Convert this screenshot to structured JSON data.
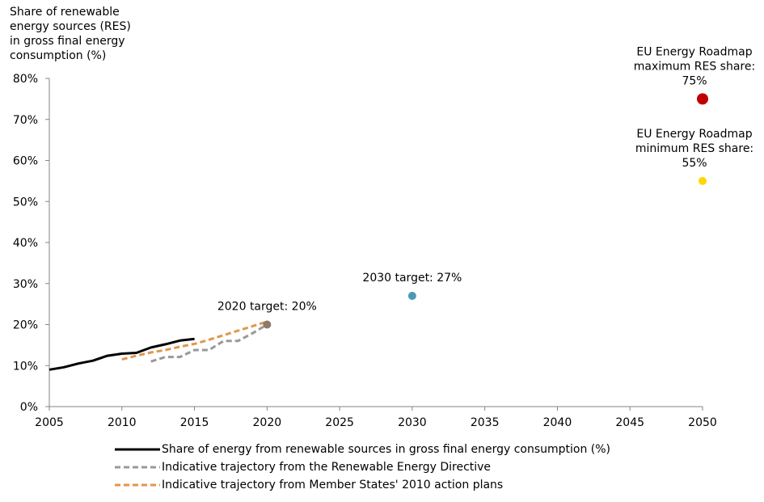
{
  "chart_data": {
    "type": "line",
    "ylabel": "Share of renewable energy sources (RES) in gross final energy consumption (%)",
    "xlim": [
      2005,
      2050
    ],
    "ylim": [
      0,
      80
    ],
    "x_ticks": [
      "2005",
      "2010",
      "2015",
      "2020",
      "2025",
      "2030",
      "2035",
      "2040",
      "2045",
      "2050"
    ],
    "y_ticks": [
      "0%",
      "10%",
      "20%",
      "30%",
      "40%",
      "50%",
      "60%",
      "70%",
      "80%"
    ],
    "grid": false,
    "legend_position": "bottom",
    "series": [
      {
        "name": "Share of energy from renewable sources in gross final energy consumption (%)",
        "style": "solid",
        "color": "#000000",
        "x": [
          2005,
          2006,
          2007,
          2008,
          2009,
          2010,
          2011,
          2012,
          2013,
          2014,
          2015
        ],
        "y": [
          9.0,
          9.6,
          10.5,
          11.2,
          12.4,
          12.9,
          13.1,
          14.4,
          15.2,
          16.1,
          16.5
        ]
      },
      {
        "name": "Indicative trajectory from the Renewable Energy Directive",
        "style": "dashed",
        "color": "#999999",
        "x": [
          2012,
          2013,
          2014,
          2015,
          2016,
          2017,
          2018,
          2019,
          2020
        ],
        "y": [
          11.0,
          12.1,
          12.1,
          13.8,
          13.8,
          16.0,
          16.0,
          17.9,
          20.0
        ]
      },
      {
        "name": "Indicative trajectory from Member States' 2010 action plans",
        "style": "dashed",
        "color": "#E0974A",
        "x": [
          2010,
          2011,
          2012,
          2013,
          2014,
          2015,
          2016,
          2017,
          2018,
          2019,
          2020
        ],
        "y": [
          11.5,
          12.4,
          13.2,
          13.8,
          14.6,
          15.3,
          16.3,
          17.4,
          18.5,
          19.6,
          20.7
        ]
      }
    ],
    "points": [
      {
        "x": 2020,
        "y": 20,
        "color": "#8C7B6A",
        "label": "2020 target: 20%"
      },
      {
        "x": 2030,
        "y": 27,
        "color": "#4A98B5",
        "label": "2030 target: 27%"
      },
      {
        "x": 2050,
        "y": 75,
        "color": "#C00000",
        "label_lines": [
          "EU Energy Roadmap",
          "maximum RES share:",
          "75%"
        ],
        "large": true
      },
      {
        "x": 2050,
        "y": 55,
        "color": "#FFD700",
        "label_lines": [
          "EU Energy Roadmap",
          "minimum RES share:",
          "55%"
        ]
      }
    ]
  }
}
